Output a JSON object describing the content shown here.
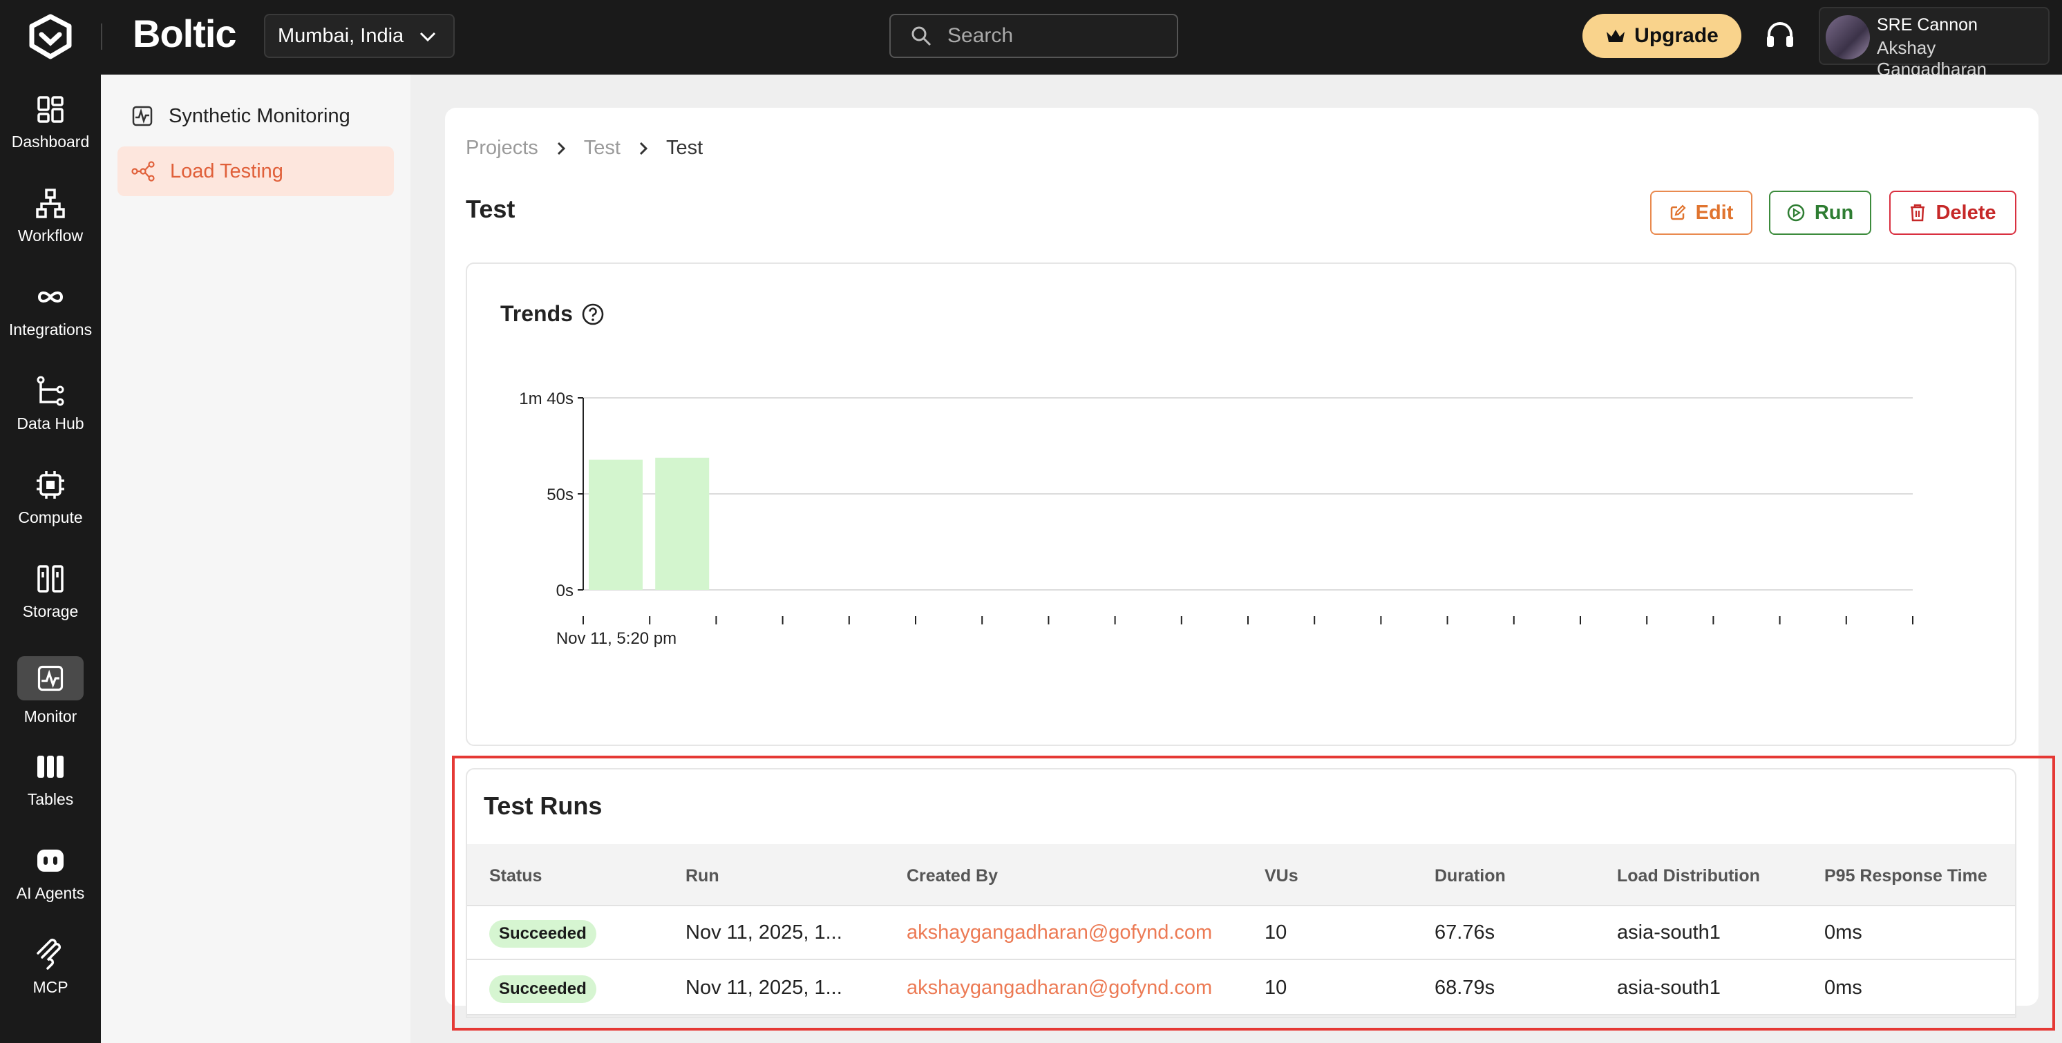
{
  "brand": {
    "name": "Boltic"
  },
  "region": {
    "label": "Mumbai, India"
  },
  "search": {
    "placeholder": "Search"
  },
  "upgrade": {
    "label": "Upgrade"
  },
  "user": {
    "org": "SRE Cannon",
    "name": "Akshay Gangadharan"
  },
  "rail": {
    "items": [
      {
        "label": "Dashboard",
        "icon": "dashboard-icon"
      },
      {
        "label": "Workflow",
        "icon": "workflow-icon"
      },
      {
        "label": "Integrations",
        "icon": "integrations-icon"
      },
      {
        "label": "Data Hub",
        "icon": "data-hub-icon"
      },
      {
        "label": "Compute",
        "icon": "compute-icon"
      },
      {
        "label": "Storage",
        "icon": "storage-icon"
      },
      {
        "label": "Monitor",
        "icon": "monitor-icon",
        "active": true
      },
      {
        "label": "Tables",
        "icon": "tables-icon"
      },
      {
        "label": "AI Agents",
        "icon": "ai-agents-icon"
      },
      {
        "label": "MCP",
        "icon": "mcp-icon"
      }
    ]
  },
  "subnav": {
    "items": [
      {
        "label": "Synthetic Monitoring",
        "icon": "pulse-icon"
      },
      {
        "label": "Load Testing",
        "icon": "load-testing-icon",
        "active": true
      }
    ]
  },
  "breadcrumb": [
    "Projects",
    "Test",
    "Test"
  ],
  "page": {
    "title": "Test"
  },
  "actions": {
    "edit": "Edit",
    "run": "Run",
    "delete": "Delete"
  },
  "trends": {
    "title": "Trends"
  },
  "chart_data": {
    "type": "bar",
    "title": "Trends",
    "y_tick_labels": [
      "0s",
      "50s",
      "1m 40s"
    ],
    "ylim": [
      0,
      100
    ],
    "x_tick_labels": [
      "Nov 11, 5:20 pm"
    ],
    "x_tick_count": 21,
    "values": [
      67.76,
      68.79
    ],
    "units": "s",
    "grid": true,
    "bar_color": "#d3f5ce"
  },
  "runs": {
    "title": "Test Runs",
    "columns": [
      "Status",
      "Run",
      "Created By",
      "VUs",
      "Duration",
      "Load Distribution",
      "P95 Response Time"
    ],
    "rows": [
      {
        "status": "Succeeded",
        "run": "Nov 11, 2025, 1...",
        "created_by": "akshaygangadharan@gofynd.com",
        "vus": "10",
        "duration": "67.76s",
        "distribution": "asia-south1",
        "p95": "0ms"
      },
      {
        "status": "Succeeded",
        "run": "Nov 11, 2025, 1...",
        "created_by": "akshaygangadharan@gofynd.com",
        "vus": "10",
        "duration": "68.79s",
        "distribution": "asia-south1",
        "p95": "0ms"
      }
    ]
  },
  "colors": {
    "accent": "#e0603a",
    "success_bg": "#d6f5d1",
    "highlight": "#e53935"
  }
}
